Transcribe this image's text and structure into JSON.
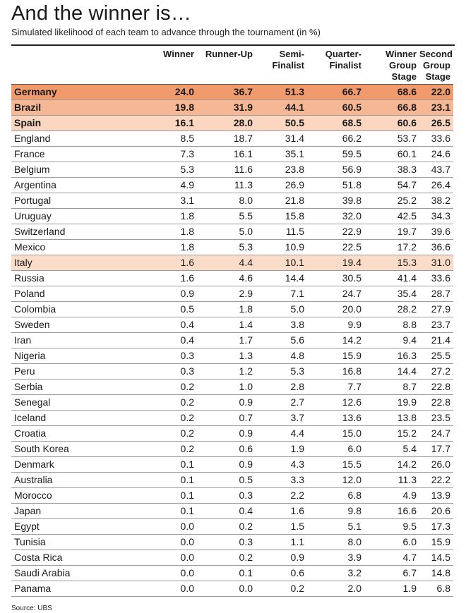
{
  "title": "And the winner is…",
  "subtitle": "Simulated likelihood of each team to advance through the tournament (in %)",
  "columns": [
    {
      "lines": [
        "Winner"
      ]
    },
    {
      "lines": [
        "Runner-Up"
      ]
    },
    {
      "lines": [
        "Semi-",
        "Finalist"
      ]
    },
    {
      "lines": [
        "Quarter-",
        "Finalist"
      ]
    },
    {
      "lines": [
        "Winner",
        "Group",
        "Stage"
      ]
    },
    {
      "lines": [
        "Second",
        "Group",
        "Stage"
      ]
    }
  ],
  "rows": [
    {
      "team": "Germany",
      "values": [
        "24.0",
        "36.7",
        "51.3",
        "66.7",
        "68.6",
        "22.0"
      ],
      "style": "r1"
    },
    {
      "team": "Brazil",
      "values": [
        "19.8",
        "31.9",
        "44.1",
        "60.5",
        "66.8",
        "23.1"
      ],
      "style": "r2"
    },
    {
      "team": "Spain",
      "values": [
        "16.1",
        "28.0",
        "50.5",
        "68.5",
        "60.6",
        "26.5"
      ],
      "style": "r3"
    },
    {
      "team": "England",
      "values": [
        "8.5",
        "18.7",
        "31.4",
        "66.2",
        "53.7",
        "33.6"
      ],
      "style": ""
    },
    {
      "team": "France",
      "values": [
        "7.3",
        "16.1",
        "35.1",
        "59.5",
        "60.1",
        "24.6"
      ],
      "style": ""
    },
    {
      "team": "Belgium",
      "values": [
        "5.3",
        "11.6",
        "23.8",
        "56.9",
        "38.3",
        "43.7"
      ],
      "style": ""
    },
    {
      "team": "Argentina",
      "values": [
        "4.9",
        "11.3",
        "26.9",
        "51.8",
        "54.7",
        "26.4"
      ],
      "style": ""
    },
    {
      "team": "Portugal",
      "values": [
        "3.1",
        "8.0",
        "21.8",
        "39.8",
        "25.2",
        "38.2"
      ],
      "style": ""
    },
    {
      "team": "Uruguay",
      "values": [
        "1.8",
        "5.5",
        "15.8",
        "32.0",
        "42.5",
        "34.3"
      ],
      "style": ""
    },
    {
      "team": "Switzerland",
      "values": [
        "1.8",
        "5.0",
        "11.5",
        "22.9",
        "19.7",
        "39.6"
      ],
      "style": ""
    },
    {
      "team": "Mexico",
      "values": [
        "1.8",
        "5.3",
        "10.9",
        "22.5",
        "17.2",
        "36.6"
      ],
      "style": ""
    },
    {
      "team": "Italy",
      "values": [
        "1.6",
        "4.4",
        "10.1",
        "19.4",
        "15.3",
        "31.0"
      ],
      "style": "hl"
    },
    {
      "team": "Russia",
      "values": [
        "1.6",
        "4.6",
        "14.4",
        "30.5",
        "41.4",
        "33.6"
      ],
      "style": ""
    },
    {
      "team": "Poland",
      "values": [
        "0.9",
        "2.9",
        "7.1",
        "24.7",
        "35.4",
        "28.7"
      ],
      "style": ""
    },
    {
      "team": "Colombia",
      "values": [
        "0.5",
        "1.8",
        "5.0",
        "20.0",
        "28.2",
        "27.9"
      ],
      "style": ""
    },
    {
      "team": "Sweden",
      "values": [
        "0.4",
        "1.4",
        "3.8",
        "9.9",
        "8.8",
        "23.7"
      ],
      "style": ""
    },
    {
      "team": "Iran",
      "values": [
        "0.4",
        "1.7",
        "5.6",
        "14.2",
        "9.4",
        "21.4"
      ],
      "style": ""
    },
    {
      "team": "Nigeria",
      "values": [
        "0.3",
        "1.3",
        "4.8",
        "15.9",
        "16.3",
        "25.5"
      ],
      "style": ""
    },
    {
      "team": "Peru",
      "values": [
        "0.3",
        "1.2",
        "5.3",
        "16.8",
        "14.4",
        "27.2"
      ],
      "style": ""
    },
    {
      "team": "Serbia",
      "values": [
        "0.2",
        "1.0",
        "2.8",
        "7.7",
        "8.7",
        "22.8"
      ],
      "style": ""
    },
    {
      "team": "Senegal",
      "values": [
        "0.2",
        "0.9",
        "2.7",
        "12.6",
        "19.9",
        "22.8"
      ],
      "style": ""
    },
    {
      "team": "Iceland",
      "values": [
        "0.2",
        "0.7",
        "3.7",
        "13.6",
        "13.8",
        "23.5"
      ],
      "style": ""
    },
    {
      "team": "Croatia",
      "values": [
        "0.2",
        "0.9",
        "4.4",
        "15.0",
        "15.2",
        "24.7"
      ],
      "style": ""
    },
    {
      "team": "South Korea",
      "values": [
        "0.2",
        "0.6",
        "1.9",
        "6.0",
        "5.4",
        "17.7"
      ],
      "style": ""
    },
    {
      "team": "Denmark",
      "values": [
        "0.1",
        "0.9",
        "4.3",
        "15.5",
        "14.2",
        "26.0"
      ],
      "style": ""
    },
    {
      "team": "Australia",
      "values": [
        "0.1",
        "0.5",
        "3.3",
        "12.0",
        "11.3",
        "22.2"
      ],
      "style": ""
    },
    {
      "team": "Morocco",
      "values": [
        "0.1",
        "0.3",
        "2.2",
        "6.8",
        "4.9",
        "13.9"
      ],
      "style": ""
    },
    {
      "team": "Japan",
      "values": [
        "0.1",
        "0.4",
        "1.6",
        "9.8",
        "16.6",
        "20.6"
      ],
      "style": ""
    },
    {
      "team": "Egypt",
      "values": [
        "0.0",
        "0.2",
        "1.5",
        "5.1",
        "9.5",
        "17.3"
      ],
      "style": ""
    },
    {
      "team": "Tunisia",
      "values": [
        "0.0",
        "0.3",
        "1.1",
        "8.0",
        "6.0",
        "15.9"
      ],
      "style": ""
    },
    {
      "team": "Costa Rica",
      "values": [
        "0.0",
        "0.2",
        "0.9",
        "3.9",
        "4.7",
        "14.5"
      ],
      "style": ""
    },
    {
      "team": "Saudi Arabia",
      "values": [
        "0.0",
        "0.1",
        "0.6",
        "3.2",
        "6.7",
        "14.8"
      ],
      "style": ""
    },
    {
      "team": "Panama",
      "values": [
        "0.0",
        "0.0",
        "0.2",
        "2.0",
        "1.9",
        "6.8"
      ],
      "style": ""
    }
  ],
  "source": "Source: UBS"
}
